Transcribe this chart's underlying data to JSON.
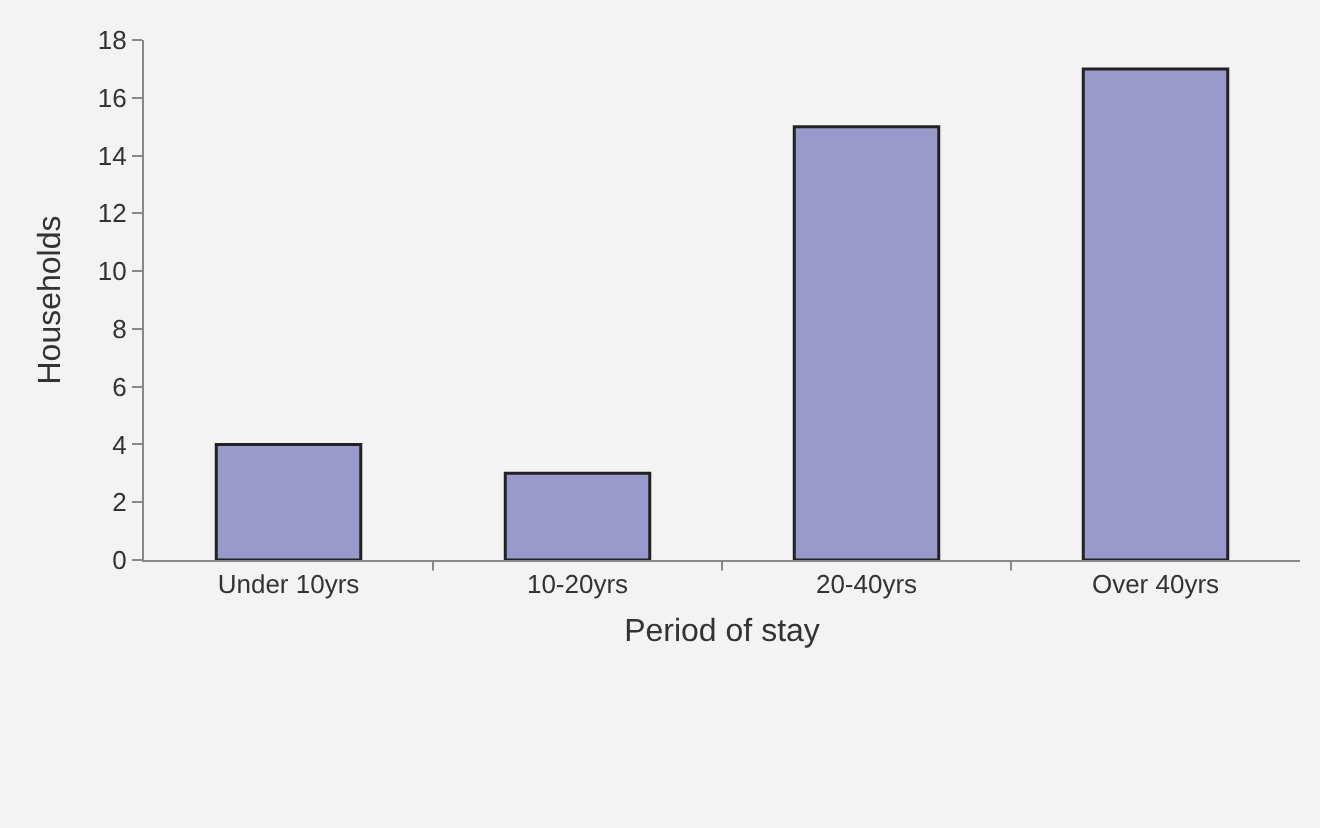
{
  "chart_data": {
    "type": "bar",
    "xlabel": "Period of stay",
    "ylabel": "Households",
    "categories": [
      "Under 10yrs",
      "10-20yrs",
      "20-40yrs",
      "Over 40yrs"
    ],
    "values": [
      4,
      3,
      15,
      17
    ],
    "color": "#9999cc",
    "ylim": [
      0,
      18
    ],
    "yticks": [
      0,
      2,
      4,
      6,
      8,
      10,
      12,
      14,
      16,
      18
    ],
    "grid": false
  }
}
